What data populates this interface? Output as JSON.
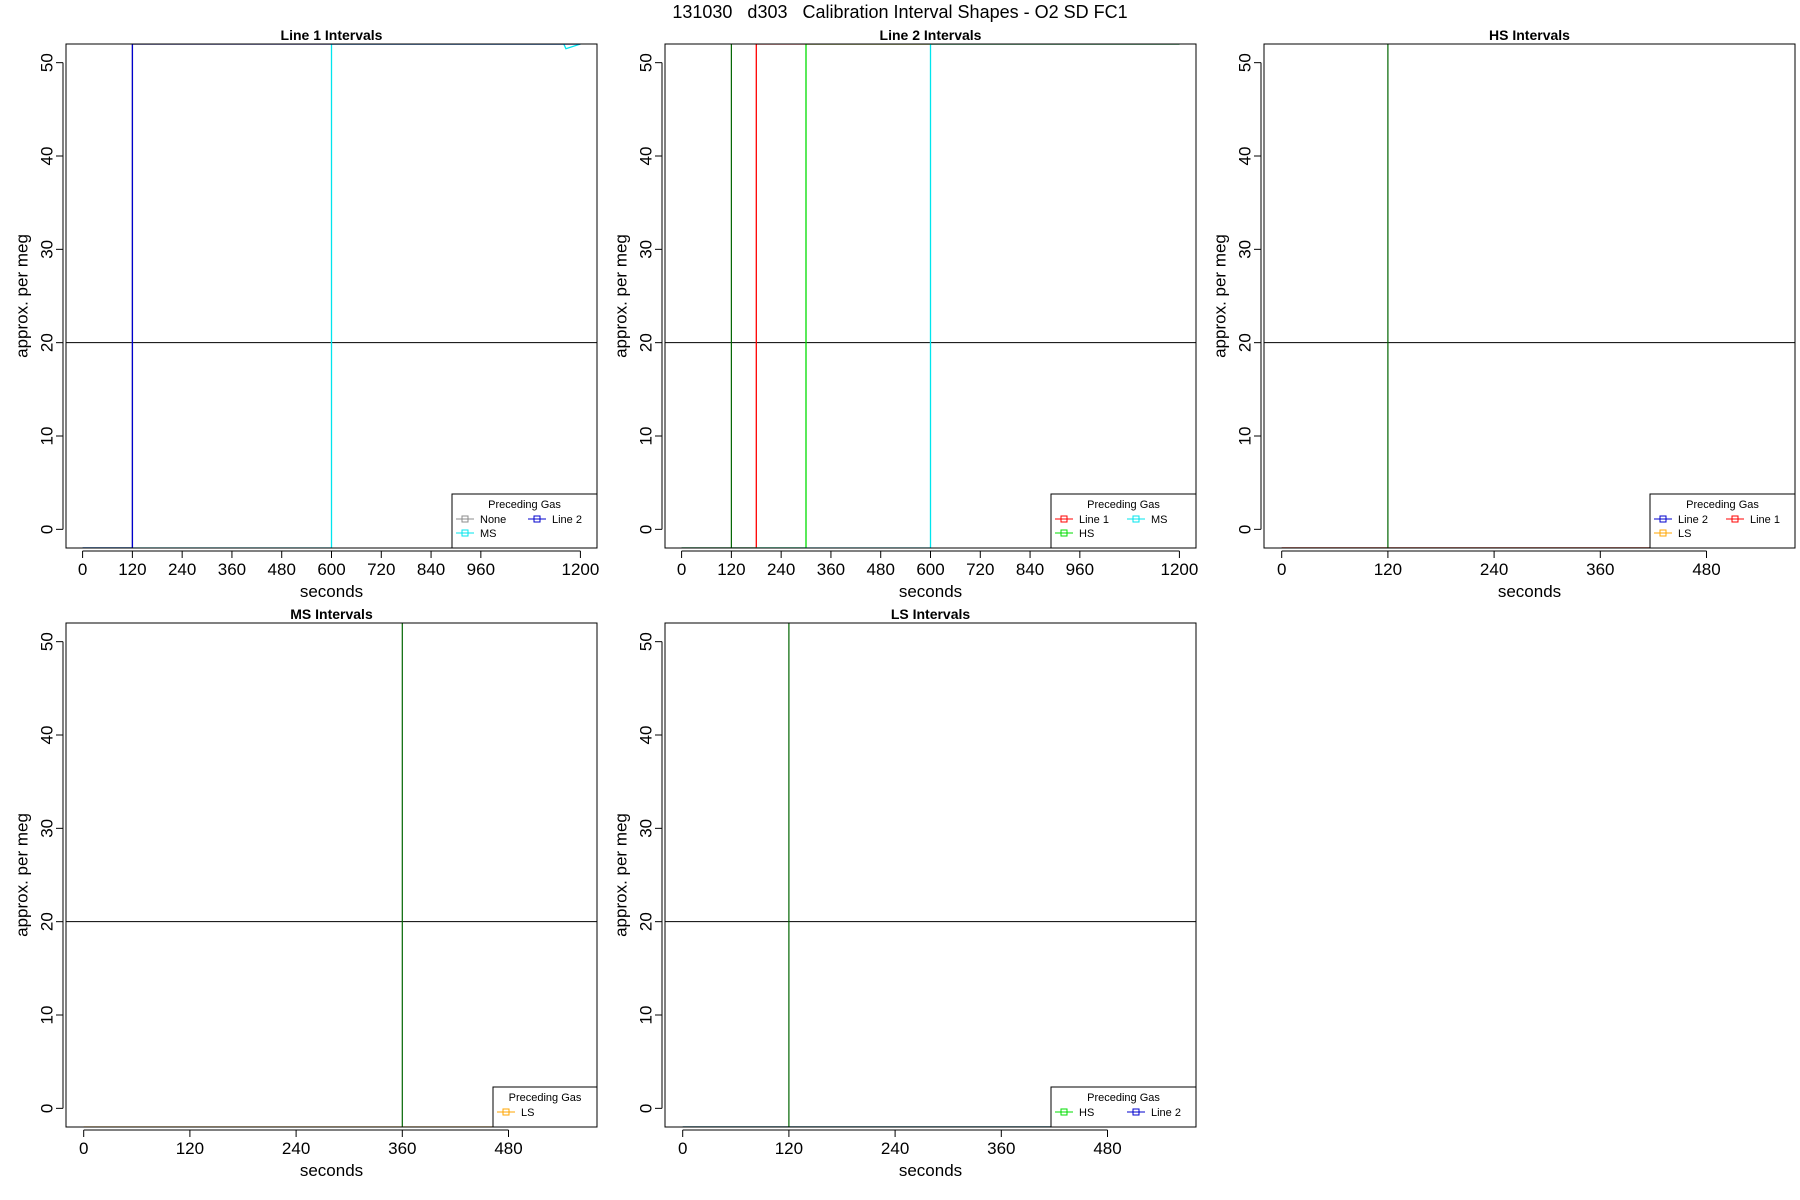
{
  "page": {
    "suptitle": "131030   d303   Calibration Interval Shapes - O2 SD FC1"
  },
  "legend_title": "Preceding Gas",
  "colors": {
    "None": "#8c8c8c",
    "MS": "#00e5ee",
    "Line 2": "#0000cd",
    "Line 1": "#ff0000",
    "HS": "#00dd00",
    "LS": "#ffa500",
    "hline": "#000000",
    "sample": "#006400"
  },
  "chart_data": [
    {
      "type": "line",
      "title": "Line 1 Intervals",
      "xlabel": "seconds",
      "ylabel": "approx. per meg",
      "xlim": [
        -40,
        1240
      ],
      "ylim": [
        -2,
        52
      ],
      "xticks": [
        0,
        120,
        240,
        360,
        480,
        600,
        720,
        840,
        960,
        1200
      ],
      "yticks": [
        0,
        10,
        20,
        30,
        40,
        50
      ],
      "hline": 20,
      "legend_position": "bottom-right",
      "series": [
        {
          "name": "None",
          "x": [
            0,
            120,
            120,
            1200
          ],
          "y": [
            -2,
            -2,
            52,
            52
          ]
        },
        {
          "name": "MS",
          "x": [
            0,
            600,
            600,
            1160,
            1165,
            1200
          ],
          "y": [
            -2,
            -2,
            52,
            52,
            51.5,
            52
          ]
        },
        {
          "name": "Line 2",
          "x": [
            0,
            120,
            120,
            1200
          ],
          "y": [
            -2,
            -2,
            52,
            52
          ]
        }
      ],
      "legend": [
        "None",
        "Line 2",
        "MS"
      ]
    },
    {
      "type": "line",
      "title": "Line 2 Intervals",
      "xlabel": "seconds",
      "ylabel": "approx. per meg",
      "xlim": [
        -40,
        1240
      ],
      "ylim": [
        -2,
        52
      ],
      "xticks": [
        0,
        120,
        240,
        360,
        480,
        600,
        720,
        840,
        960,
        1200
      ],
      "yticks": [
        0,
        10,
        20,
        30,
        40,
        50
      ],
      "hline": 20,
      "legend_position": "bottom-right",
      "series": [
        {
          "name": "Line 1",
          "x": [
            0,
            180,
            180,
            1200
          ],
          "y": [
            -2,
            -2,
            52,
            52
          ]
        },
        {
          "name": "HS",
          "x": [
            0,
            300,
            300,
            1200
          ],
          "y": [
            -2,
            -2,
            52,
            52
          ]
        },
        {
          "name": "MS",
          "x": [
            0,
            600,
            600,
            1200
          ],
          "y": [
            -2,
            -2,
            52,
            52
          ]
        }
      ],
      "sample_lines": [
        120
      ],
      "legend": [
        "Line 1",
        "MS",
        "HS"
      ]
    },
    {
      "type": "line",
      "title": "HS Intervals",
      "xlabel": "seconds",
      "ylabel": "approx. per meg",
      "xlim": [
        -20,
        580
      ],
      "ylim": [
        -2,
        52
      ],
      "xticks": [
        0,
        120,
        240,
        360,
        480
      ],
      "yticks": [
        0,
        10,
        20,
        30,
        40,
        50
      ],
      "hline": 20,
      "legend_position": "bottom-right",
      "series": [
        {
          "name": "Line 2",
          "x": [
            0,
            580
          ],
          "y": [
            -2,
            -2
          ]
        },
        {
          "name": "Line 1",
          "x": [
            0,
            580
          ],
          "y": [
            -2,
            -2
          ]
        },
        {
          "name": "LS",
          "x": [
            0,
            580
          ],
          "y": [
            -2,
            -2
          ]
        }
      ],
      "sample_lines": [
        120
      ],
      "legend": [
        "Line 2",
        "Line 1",
        "LS"
      ]
    },
    {
      "type": "line",
      "title": "MS Intervals",
      "xlabel": "seconds",
      "ylabel": "approx. per meg",
      "xlim": [
        -20,
        580
      ],
      "ylim": [
        -2,
        52
      ],
      "xticks": [
        0,
        120,
        240,
        360,
        480
      ],
      "yticks": [
        0,
        10,
        20,
        30,
        40,
        50
      ],
      "hline": 20,
      "legend_position": "bottom-right",
      "series": [
        {
          "name": "LS",
          "x": [
            0,
            580
          ],
          "y": [
            -2,
            -2
          ]
        }
      ],
      "sample_lines": [
        360
      ],
      "legend": [
        "LS"
      ]
    },
    {
      "type": "line",
      "title": "LS Intervals",
      "xlabel": "seconds",
      "ylabel": "approx. per meg",
      "xlim": [
        -20,
        580
      ],
      "ylim": [
        -2,
        52
      ],
      "xticks": [
        0,
        120,
        240,
        360,
        480
      ],
      "yticks": [
        0,
        10,
        20,
        30,
        40,
        50
      ],
      "hline": 20,
      "legend_position": "bottom-right",
      "series": [
        {
          "name": "HS",
          "x": [
            0,
            580
          ],
          "y": [
            -2,
            -2
          ]
        },
        {
          "name": "Line 2",
          "x": [
            0,
            580
          ],
          "y": [
            -2,
            -2
          ]
        }
      ],
      "sample_lines": [
        120
      ],
      "legend": [
        "HS",
        "Line 2"
      ]
    }
  ]
}
